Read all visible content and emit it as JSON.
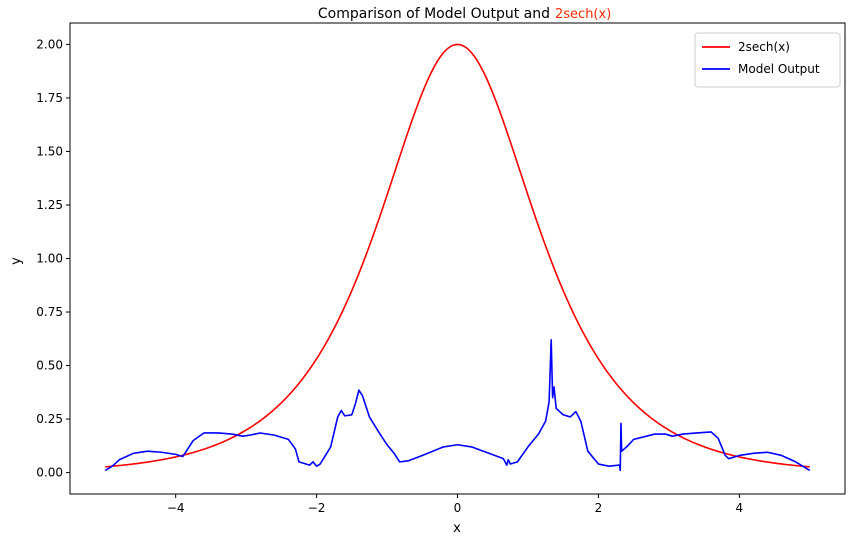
{
  "chart_data": {
    "type": "line",
    "title": "Comparison of Model Output and",
    "title_highlight": "2sech(x)",
    "title_highlight_color": "#ff2a00",
    "xlabel": "x",
    "ylabel": "y",
    "xlim": [
      -5.5,
      5.5
    ],
    "ylim": [
      -0.1,
      2.1
    ],
    "x_ticks": [
      -4,
      -2,
      0,
      2,
      4
    ],
    "x_tick_labels": [
      "−4",
      "−2",
      "0",
      "2",
      "4"
    ],
    "y_ticks": [
      0.0,
      0.25,
      0.5,
      0.75,
      1.0,
      1.25,
      1.5,
      1.75,
      2.0
    ],
    "y_tick_labels": [
      "0.00",
      "0.25",
      "0.50",
      "0.75",
      "1.00",
      "1.25",
      "1.50",
      "1.75",
      "2.00"
    ],
    "grid": false,
    "legend_position": "top-right",
    "series": [
      {
        "name": "2sech(x)",
        "color": "#ff0000",
        "function": "2sech(x)",
        "x_range": [
          -5,
          5
        ]
      },
      {
        "name": "Model Output",
        "color": "#0000ff",
        "points": [
          [
            -5.0,
            0.01
          ],
          [
            -4.9,
            0.03
          ],
          [
            -4.8,
            0.06
          ],
          [
            -4.6,
            0.09
          ],
          [
            -4.4,
            0.1
          ],
          [
            -4.2,
            0.095
          ],
          [
            -4.0,
            0.085
          ],
          [
            -3.9,
            0.075
          ],
          [
            -3.85,
            0.1
          ],
          [
            -3.75,
            0.15
          ],
          [
            -3.6,
            0.185
          ],
          [
            -3.4,
            0.185
          ],
          [
            -3.2,
            0.18
          ],
          [
            -3.05,
            0.17
          ],
          [
            -2.95,
            0.175
          ],
          [
            -2.8,
            0.185
          ],
          [
            -2.6,
            0.175
          ],
          [
            -2.4,
            0.155
          ],
          [
            -2.3,
            0.11
          ],
          [
            -2.25,
            0.05
          ],
          [
            -2.1,
            0.035
          ],
          [
            -2.05,
            0.05
          ],
          [
            -2.0,
            0.03
          ],
          [
            -1.95,
            0.04
          ],
          [
            -1.8,
            0.12
          ],
          [
            -1.7,
            0.26
          ],
          [
            -1.65,
            0.29
          ],
          [
            -1.6,
            0.265
          ],
          [
            -1.5,
            0.27
          ],
          [
            -1.45,
            0.32
          ],
          [
            -1.4,
            0.385
          ],
          [
            -1.35,
            0.36
          ],
          [
            -1.25,
            0.26
          ],
          [
            -1.1,
            0.18
          ],
          [
            -1.0,
            0.13
          ],
          [
            -0.9,
            0.09
          ],
          [
            -0.82,
            0.05
          ],
          [
            -0.7,
            0.055
          ],
          [
            -0.5,
            0.08
          ],
          [
            -0.2,
            0.12
          ],
          [
            0.0,
            0.13
          ],
          [
            0.2,
            0.12
          ],
          [
            0.45,
            0.09
          ],
          [
            0.65,
            0.065
          ],
          [
            0.7,
            0.035
          ],
          [
            0.72,
            0.06
          ],
          [
            0.75,
            0.04
          ],
          [
            0.85,
            0.05
          ],
          [
            1.0,
            0.12
          ],
          [
            1.15,
            0.18
          ],
          [
            1.25,
            0.24
          ],
          [
            1.3,
            0.33
          ],
          [
            1.33,
            0.62
          ],
          [
            1.35,
            0.35
          ],
          [
            1.37,
            0.4
          ],
          [
            1.4,
            0.3
          ],
          [
            1.5,
            0.27
          ],
          [
            1.6,
            0.26
          ],
          [
            1.68,
            0.285
          ],
          [
            1.75,
            0.24
          ],
          [
            1.85,
            0.1
          ],
          [
            2.0,
            0.04
          ],
          [
            2.15,
            0.03
          ],
          [
            2.3,
            0.035
          ],
          [
            2.31,
            0.01
          ],
          [
            2.32,
            0.23
          ],
          [
            2.33,
            0.1
          ],
          [
            2.4,
            0.12
          ],
          [
            2.5,
            0.155
          ],
          [
            2.8,
            0.18
          ],
          [
            2.95,
            0.18
          ],
          [
            3.05,
            0.17
          ],
          [
            3.2,
            0.18
          ],
          [
            3.4,
            0.185
          ],
          [
            3.6,
            0.19
          ],
          [
            3.7,
            0.16
          ],
          [
            3.8,
            0.08
          ],
          [
            3.85,
            0.065
          ],
          [
            4.0,
            0.08
          ],
          [
            4.2,
            0.09
          ],
          [
            4.4,
            0.095
          ],
          [
            4.6,
            0.08
          ],
          [
            4.8,
            0.05
          ],
          [
            5.0,
            0.01
          ]
        ]
      }
    ]
  }
}
